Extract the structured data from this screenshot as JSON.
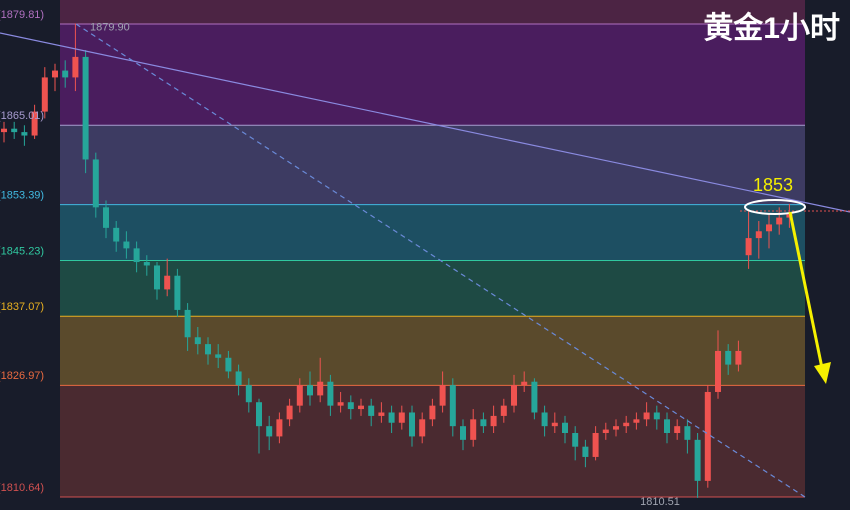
{
  "chart_data": {
    "type": "candlestick",
    "title": "黄金1小时",
    "ylim": [
      1808.74,
      1883.32
    ],
    "yticks": [
      {
        "value": 1879.81,
        "label": "(1879.81)"
      },
      {
        "value": 1865.01,
        "label": "(1865.01)"
      },
      {
        "value": 1853.39,
        "label": "(1853.39)"
      },
      {
        "value": 1845.23,
        "label": "(1845.23)"
      },
      {
        "value": 1837.07,
        "label": "(1837.07)"
      },
      {
        "value": 1826.97,
        "label": "(1826.97)"
      },
      {
        "value": 1810.64,
        "label": "(1810.64)"
      }
    ],
    "level_colors": [
      "#b070c0",
      "#a89cd0",
      "#40b8e0",
      "#30c8a0",
      "#e8b020",
      "#e86a40",
      "#d05050"
    ],
    "band_colors": [
      "#4c2444",
      "#4a1d5e",
      "#3d3b62",
      "#1d4f62",
      "#1e4a44",
      "#5a4a2c",
      "#4a2a30"
    ],
    "up_color": "#ef5350",
    "down_color": "#26a69a",
    "open": [
      1864,
      1864.5,
      1864.0,
      1863.5,
      1867,
      1872,
      1873,
      1872,
      1875,
      1860,
      1853,
      1850,
      1848,
      1847,
      1845,
      1844.5,
      1841,
      1843,
      1838,
      1834,
      1833,
      1831.5,
      1831,
      1829,
      1827,
      1824.5,
      1821,
      1819.5,
      1822,
      1824,
      1827,
      1825.5,
      1827.5,
      1824,
      1824.5,
      1823.5,
      1824,
      1822.5,
      1823,
      1821.5,
      1823,
      1819.5,
      1822,
      1824,
      1827,
      1821,
      1819,
      1822,
      1821,
      1822.5,
      1824,
      1827,
      1827.5,
      1823,
      1821,
      1821.5,
      1820,
      1818,
      1816.5,
      1820,
      1820.5,
      1821,
      1821.5,
      1822,
      1823,
      1822,
      1820,
      1821,
      1819,
      1813,
      1826,
      1832,
      1830,
      1846,
      1848.5,
      1849.5,
      1850.5,
      1851.5
    ],
    "high": [
      1865.5,
      1865.5,
      1865,
      1868,
      1873.5,
      1874,
      1874.5,
      1879.9,
      1876,
      1861,
      1854,
      1851,
      1849.5,
      1848,
      1846,
      1845,
      1845.5,
      1844,
      1839,
      1835.5,
      1834,
      1833,
      1832,
      1830,
      1828,
      1825,
      1822.5,
      1823,
      1825,
      1828,
      1829,
      1831,
      1828.5,
      1826,
      1825.5,
      1825,
      1825,
      1824.5,
      1824,
      1824,
      1824,
      1823,
      1825,
      1829,
      1828,
      1822,
      1823.5,
      1823,
      1824,
      1825,
      1828.5,
      1829,
      1828,
      1824,
      1823,
      1822.5,
      1821,
      1819,
      1821,
      1821.5,
      1822,
      1822.5,
      1823,
      1824.5,
      1824,
      1823,
      1822,
      1822,
      1820,
      1827,
      1835,
      1833,
      1833.5,
      1852.5,
      1851,
      1852,
      1853,
      1853.5
    ],
    "low": [
      1862.5,
      1863,
      1862,
      1863,
      1866,
      1870,
      1870.5,
      1870,
      1858,
      1851.5,
      1848.5,
      1846.5,
      1845.5,
      1843.5,
      1843,
      1839.5,
      1840,
      1837,
      1832,
      1831.5,
      1830,
      1829.5,
      1828,
      1825.5,
      1823,
      1817,
      1817.5,
      1818.5,
      1821,
      1823,
      1824,
      1824.5,
      1822.5,
      1823,
      1822,
      1822.5,
      1821,
      1821.5,
      1820,
      1820.5,
      1818,
      1818.5,
      1821,
      1823,
      1819.5,
      1817.5,
      1818,
      1820,
      1820,
      1821.5,
      1823,
      1826,
      1822,
      1819.5,
      1820,
      1818.5,
      1816,
      1815,
      1816,
      1819,
      1819.5,
      1820,
      1820.5,
      1821,
      1820.5,
      1818.5,
      1819,
      1817,
      1810.51,
      1812,
      1825,
      1828.5,
      1829,
      1844,
      1845.5,
      1847,
      1849,
      1850
    ],
    "close": [
      1864.5,
      1864.0,
      1863.5,
      1867,
      1872,
      1873,
      1872,
      1875,
      1860,
      1853,
      1850,
      1848,
      1847,
      1845,
      1844.5,
      1841,
      1843,
      1838,
      1834,
      1833,
      1831.5,
      1831,
      1829,
      1827,
      1824.5,
      1821,
      1819.5,
      1822,
      1824,
      1827,
      1825.5,
      1827.5,
      1824,
      1824.5,
      1823.5,
      1824,
      1822.5,
      1823,
      1821.5,
      1823,
      1819.5,
      1822,
      1824,
      1827,
      1821,
      1819,
      1822,
      1821,
      1822.5,
      1824,
      1827,
      1827.5,
      1823,
      1821,
      1821.5,
      1820,
      1818,
      1816.5,
      1820,
      1820.5,
      1821,
      1821.5,
      1822,
      1823,
      1822,
      1820,
      1821,
      1819,
      1813,
      1826,
      1832,
      1830,
      1832,
      1848.5,
      1849.5,
      1850.5,
      1851.5,
      1852
    ],
    "annotations": [
      {
        "text": "1879.90",
        "value": 1879.9
      },
      {
        "text": "1810.51",
        "value": 1810.51
      },
      {
        "text": "1853",
        "value": 1853
      }
    ]
  }
}
